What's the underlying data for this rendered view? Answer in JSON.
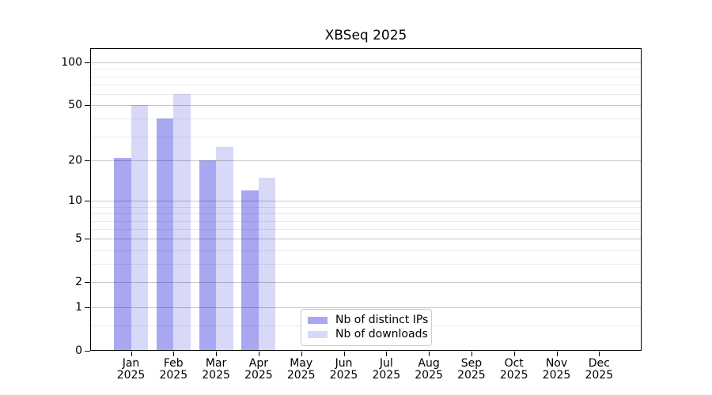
{
  "chart_data": {
    "type": "bar",
    "title": "XBSeq 2025",
    "categories": [
      "Jan",
      "Feb",
      "Mar",
      "Apr",
      "May",
      "Jun",
      "Jul",
      "Aug",
      "Sep",
      "Oct",
      "Nov",
      "Dec"
    ],
    "year_label": "2025",
    "series": [
      {
        "name": "Nb of distinct IPs",
        "color": "#a8a8f2",
        "values": [
          21,
          40,
          20,
          12,
          0,
          0,
          0,
          0,
          0,
          0,
          0,
          0
        ]
      },
      {
        "name": "Nb of downloads",
        "color": "#d8d8f8",
        "values": [
          50,
          60,
          25,
          15,
          0,
          0,
          0,
          0,
          0,
          0,
          0,
          0
        ]
      }
    ],
    "yscale": "log1p",
    "yticks": [
      0,
      1,
      2,
      5,
      10,
      20,
      50,
      100
    ],
    "yticks_minor": [
      0.5,
      3,
      4,
      6,
      7,
      8,
      9,
      30,
      40,
      60,
      70,
      80,
      90
    ],
    "ylim": [
      0,
      126
    ],
    "grid": "horizontal-on-top",
    "legend_position": "inside-bottom-center",
    "axis_color": "#000000",
    "grid_major_color": "#c7c7c7",
    "grid_minor_color": "#ebebeb"
  }
}
